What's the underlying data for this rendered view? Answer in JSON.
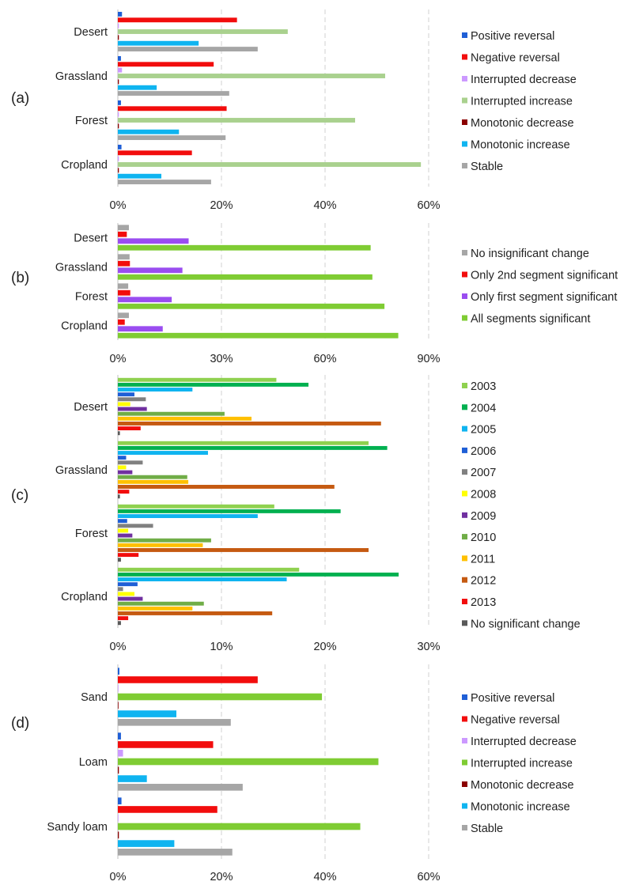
{
  "chart_data": [
    {
      "type": "bar",
      "orientation": "horizontal",
      "panel_label": "(a)",
      "categories": [
        "Desert",
        "Grassland",
        "Forest",
        "Cropland"
      ],
      "xlim": [
        0,
        60
      ],
      "ticks": [
        0,
        20,
        40,
        60
      ],
      "tick_labels": [
        "0%",
        "20%",
        "40%",
        "60%"
      ],
      "grid": true,
      "legend_position": "right",
      "series": [
        {
          "name": "Positive reversal",
          "color": "#1f5fd6",
          "values": [
            0.8,
            0.6,
            0.6,
            0.7
          ]
        },
        {
          "name": "Negative reversal",
          "color": "#f20d0d",
          "values": [
            23,
            18.5,
            21,
            14.3
          ]
        },
        {
          "name": "Interrupted decrease",
          "color": "#cc99ff",
          "values": [
            0.2,
            0.8,
            0.2,
            0.2
          ]
        },
        {
          "name": "Interrupted increase",
          "color": "#a9d18e",
          "values": [
            32.8,
            51.6,
            45.8,
            58.5
          ]
        },
        {
          "name": "Monotonic decrease",
          "color": "#8b0000",
          "values": [
            0.2,
            0.2,
            0.2,
            0.2
          ]
        },
        {
          "name": "Monotonic increase",
          "color": "#0fb4f0",
          "values": [
            15.6,
            7.5,
            11.8,
            8.4
          ]
        },
        {
          "name": "Stable",
          "color": "#a6a6a6",
          "values": [
            27,
            21.5,
            20.8,
            18
          ]
        }
      ]
    },
    {
      "type": "bar",
      "orientation": "horizontal",
      "panel_label": "(b)",
      "categories": [
        "Desert",
        "Grassland",
        "Forest",
        "Cropland"
      ],
      "xlim": [
        0,
        90
      ],
      "ticks": [
        0,
        30,
        60,
        90
      ],
      "tick_labels": [
        "0%",
        "30%",
        "60%",
        "90%"
      ],
      "grid": true,
      "legend_position": "right",
      "series": [
        {
          "name": "No insignificant change",
          "color": "#a6a6a6",
          "values": [
            3.2,
            3.4,
            3.0,
            3.2
          ]
        },
        {
          "name": "Only 2nd segment significant",
          "color": "#f20d0d",
          "values": [
            2.6,
            3.5,
            3.6,
            2.0
          ]
        },
        {
          "name": "Only first segment significant",
          "color": "#9a4df0",
          "values": [
            20.5,
            18.7,
            15.6,
            13.0
          ]
        },
        {
          "name": "All segments significant",
          "color": "#7fcc33",
          "values": [
            73.2,
            73.7,
            77.2,
            81.2
          ]
        }
      ]
    },
    {
      "type": "bar",
      "orientation": "horizontal",
      "panel_label": "(c)",
      "categories": [
        "Desert",
        "Grassland",
        "Forest",
        "Cropland"
      ],
      "xlim": [
        0,
        30
      ],
      "ticks": [
        0,
        10,
        20,
        30
      ],
      "tick_labels": [
        "0%",
        "10%",
        "20%",
        "30%"
      ],
      "grid": true,
      "legend_position": "right",
      "series": [
        {
          "name": "2003",
          "color": "#8fd14f",
          "values": [
            15.3,
            24.2,
            15.1,
            17.5
          ]
        },
        {
          "name": "2004",
          "color": "#00b050",
          "values": [
            18.4,
            26.0,
            21.5,
            27.1
          ]
        },
        {
          "name": "2005",
          "color": "#0fb4f0",
          "values": [
            7.2,
            8.7,
            13.5,
            16.3
          ]
        },
        {
          "name": "2006",
          "color": "#1f5fd6",
          "values": [
            1.6,
            0.8,
            0.9,
            1.9
          ]
        },
        {
          "name": "2007",
          "color": "#808080",
          "values": [
            2.7,
            2.4,
            3.4,
            0.5
          ]
        },
        {
          "name": "2008",
          "color": "#ffff00",
          "values": [
            1.2,
            0.8,
            1.0,
            1.6
          ]
        },
        {
          "name": "2009",
          "color": "#7030a0",
          "values": [
            2.8,
            1.4,
            1.4,
            2.4
          ]
        },
        {
          "name": "2010",
          "color": "#70ad47",
          "values": [
            10.3,
            6.7,
            9.0,
            8.3
          ]
        },
        {
          "name": "2011",
          "color": "#ffc000",
          "values": [
            12.9,
            6.8,
            8.2,
            7.2
          ]
        },
        {
          "name": "2012",
          "color": "#c55a11",
          "values": [
            25.4,
            20.9,
            24.2,
            14.9
          ]
        },
        {
          "name": "2013",
          "color": "#f20d0d",
          "values": [
            2.2,
            1.1,
            2.0,
            1.0
          ]
        },
        {
          "name": "No significant change",
          "color": "#595959",
          "values": [
            0.2,
            0.2,
            0.3,
            0.3
          ]
        }
      ]
    },
    {
      "type": "bar",
      "orientation": "horizontal",
      "panel_label": "(d)",
      "categories": [
        "Sand",
        "Loam",
        "Sandy loam"
      ],
      "xlim": [
        0,
        60
      ],
      "ticks": [
        0,
        20,
        40,
        60
      ],
      "tick_labels": [
        "0%",
        "20%",
        "40%",
        "60%"
      ],
      "grid": true,
      "legend_position": "right",
      "series": [
        {
          "name": "Positive reversal",
          "color": "#1f5fd6",
          "values": [
            0.3,
            0.6,
            0.7
          ]
        },
        {
          "name": "Negative reversal",
          "color": "#f20d0d",
          "values": [
            27,
            18.4,
            19.2
          ]
        },
        {
          "name": "Interrupted decrease",
          "color": "#cc99ff",
          "values": [
            0.1,
            1.0,
            0.1
          ]
        },
        {
          "name": "Interrupted increase",
          "color": "#7fcc33",
          "values": [
            39.4,
            50.3,
            46.8
          ]
        },
        {
          "name": "Monotonic decrease",
          "color": "#8b0000",
          "values": [
            0.1,
            0.2,
            0.2
          ]
        },
        {
          "name": "Monotonic increase",
          "color": "#0fb4f0",
          "values": [
            11.3,
            5.6,
            10.9
          ]
        },
        {
          "name": "Stable",
          "color": "#a6a6a6",
          "values": [
            21.8,
            24.1,
            22.1
          ]
        }
      ]
    }
  ]
}
